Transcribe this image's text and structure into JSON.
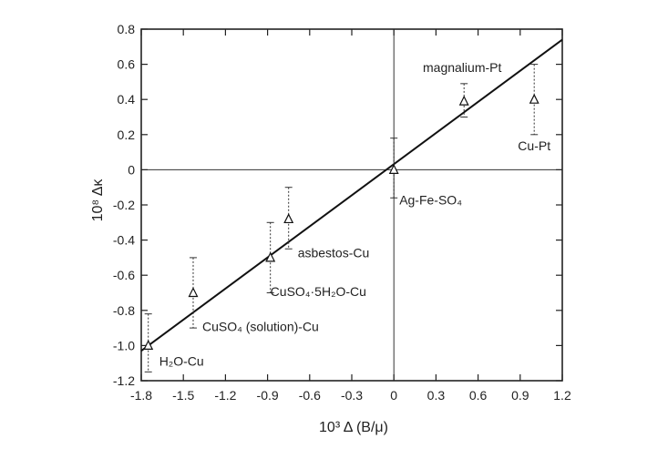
{
  "chart_data": {
    "type": "scatter",
    "xlabel": "10³ Δ (B/μ)",
    "ylabel": "10⁸ Δκ",
    "xlim": [
      -1.8,
      1.2
    ],
    "ylim": [
      -1.2,
      0.8
    ],
    "xticks": [
      "-1.8",
      "-1.5",
      "-1.2",
      "-0.9",
      "-0.6",
      "-0.3",
      "0",
      "0.3",
      "0.6",
      "0.9",
      "1.2"
    ],
    "yticks": [
      "0.8",
      "0.6",
      "0.4",
      "0.2",
      "0",
      "-0.2",
      "-0.4",
      "-0.6",
      "-0.8",
      "-1.0",
      "-1.2"
    ],
    "grid": false,
    "zero_lines": true,
    "points": [
      {
        "label": "H₂O-Cu",
        "x": -1.75,
        "y": -1.0,
        "err_low": -1.15,
        "err_high": -0.82
      },
      {
        "label": "CuSO₄ (solution)-Cu",
        "x": -1.43,
        "y": -0.7,
        "err_low": -0.9,
        "err_high": -0.5
      },
      {
        "label": "CuSO₄·5H₂O-Cu",
        "x": -0.88,
        "y": -0.5,
        "err_low": -0.7,
        "err_high": -0.3
      },
      {
        "label": "asbestos-Cu",
        "x": -0.75,
        "y": -0.28,
        "err_low": -0.45,
        "err_high": -0.1
      },
      {
        "label": "Ag-Fe-SO₄",
        "x": 0.0,
        "y": 0.0,
        "err_low": -0.16,
        "err_high": 0.18
      },
      {
        "label": "magnalium-Pt",
        "x": 0.5,
        "y": 0.39,
        "err_low": 0.3,
        "err_high": 0.49
      },
      {
        "label": "Cu-Pt",
        "x": 1.0,
        "y": 0.4,
        "err_low": 0.2,
        "err_high": 0.6
      }
    ],
    "fit_line": {
      "x": [
        -1.8,
        1.2
      ],
      "y": [
        -1.03,
        0.74
      ]
    }
  }
}
